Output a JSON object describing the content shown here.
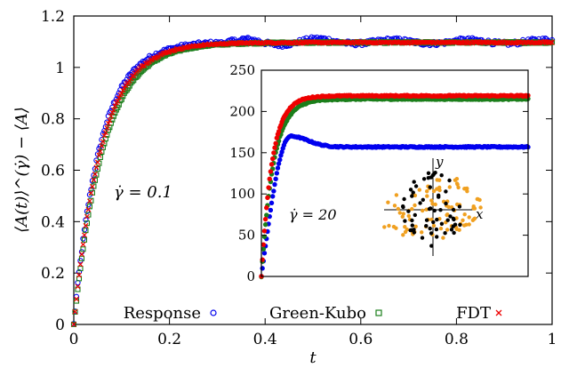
{
  "chart_data": [
    {
      "id": "main",
      "type": "scatter",
      "xlabel": "t",
      "ylabel": "⟨A(t)⟩^(γ̇) − ⟨A⟩",
      "xlim": [
        0,
        1
      ],
      "ylim": [
        0,
        1.2
      ],
      "xticks": [
        "0",
        "0.2",
        "0.4",
        "0.6",
        "0.8",
        "1"
      ],
      "yticks": [
        "0",
        "0.2",
        "0.4",
        "0.6",
        "0.8",
        "1",
        "1.2"
      ],
      "annotation": "γ̇ = 0.1",
      "legend_position": "bottom",
      "series": [
        {
          "name": "Response",
          "color": "#0000ee",
          "marker": "circle",
          "plateau": 1.1,
          "tau": 0.055,
          "noise": 0.008
        },
        {
          "name": "Green-Kubo",
          "color": "#1b7f1b",
          "marker": "square",
          "plateau": 1.097,
          "tau": 0.062,
          "noise": 0.003
        },
        {
          "name": "FDT",
          "color": "#ee0000",
          "marker": "cross",
          "plateau": 1.097,
          "tau": 0.058,
          "noise": 0.003
        }
      ]
    },
    {
      "id": "inset",
      "type": "scatter",
      "xlim": [
        0,
        1
      ],
      "ylim": [
        0,
        250
      ],
      "yticks": [
        "0",
        "50",
        "100",
        "150",
        "200",
        "250"
      ],
      "annotation": "γ̇ = 20",
      "series": [
        {
          "name": "Response",
          "color": "#0000ee",
          "shape": "overshoot",
          "peak_x": 0.11,
          "peak_y": 170,
          "plateau": 157
        },
        {
          "name": "Green-Kubo",
          "color": "#1b7f1b",
          "shape": "saturating",
          "plateau": 215,
          "tau": 0.045
        },
        {
          "name": "FDT",
          "color": "#ee0000",
          "shape": "saturating",
          "plateau": 219,
          "tau": 0.04
        }
      ]
    }
  ],
  "particle_sketch": {
    "axis_x": "x",
    "axis_y": "y",
    "colors": {
      "black_particles": "#000000",
      "orange_particles": "#f0a020"
    }
  }
}
